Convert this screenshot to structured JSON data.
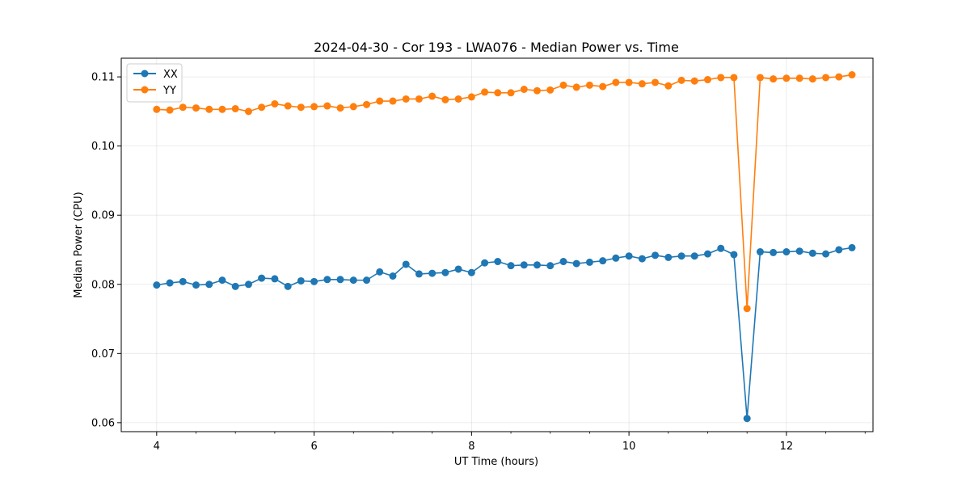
{
  "chart_data": {
    "type": "line",
    "title": "2024-04-30 - Cor 193 - LWA076 - Median Power vs. Time",
    "xlabel": "UT Time (hours)",
    "ylabel": "Median Power (CPU)",
    "xlim": [
      3.55,
      13.1
    ],
    "ylim": [
      0.0587,
      0.1127
    ],
    "xticks": [
      4,
      6,
      8,
      10,
      12
    ],
    "xtick_labels": [
      "4",
      "6",
      "8",
      "10",
      "12"
    ],
    "yticks": [
      0.06,
      0.07,
      0.08,
      0.09,
      0.1,
      0.11
    ],
    "ytick_labels": [
      "0.06",
      "0.07",
      "0.08",
      "0.09",
      "0.10",
      "0.11"
    ],
    "grid": true,
    "legend_position": "top-left",
    "x": [
      4.0,
      4.167,
      4.333,
      4.5,
      4.667,
      4.833,
      5.0,
      5.167,
      5.333,
      5.5,
      5.667,
      5.833,
      6.0,
      6.167,
      6.333,
      6.5,
      6.667,
      6.833,
      7.0,
      7.167,
      7.333,
      7.5,
      7.667,
      7.833,
      8.0,
      8.167,
      8.333,
      8.5,
      8.667,
      8.833,
      9.0,
      9.167,
      9.333,
      9.5,
      9.667,
      9.833,
      10.0,
      10.167,
      10.333,
      10.5,
      10.667,
      10.833,
      11.0,
      11.167,
      11.333,
      11.5,
      11.667,
      11.833,
      12.0,
      12.167,
      12.333,
      12.5,
      12.667,
      12.833
    ],
    "series": [
      {
        "name": "XX",
        "color": "#1f77b4",
        "values": [
          0.0799,
          0.0802,
          0.0804,
          0.0799,
          0.08,
          0.0806,
          0.0797,
          0.08,
          0.0809,
          0.0808,
          0.0797,
          0.0805,
          0.0804,
          0.0807,
          0.0807,
          0.0806,
          0.0806,
          0.0818,
          0.0812,
          0.0829,
          0.0815,
          0.0816,
          0.0817,
          0.0822,
          0.0817,
          0.0831,
          0.0833,
          0.0827,
          0.0828,
          0.0828,
          0.0827,
          0.0833,
          0.083,
          0.0832,
          0.0834,
          0.0838,
          0.0841,
          0.0837,
          0.0842,
          0.0839,
          0.0841,
          0.0841,
          0.0844,
          0.0852,
          0.0843,
          0.0606,
          0.0847,
          0.0846,
          0.0847,
          0.0848,
          0.0845,
          0.0844,
          0.085,
          0.0853
        ]
      },
      {
        "name": "YY",
        "color": "#ff7f0e",
        "values": [
          0.1053,
          0.1052,
          0.1056,
          0.1055,
          0.1053,
          0.1053,
          0.1054,
          0.105,
          0.1056,
          0.1061,
          0.1058,
          0.1056,
          0.1057,
          0.1058,
          0.1055,
          0.1057,
          0.106,
          0.1065,
          0.1065,
          0.1068,
          0.1068,
          0.1072,
          0.1067,
          0.1068,
          0.1071,
          0.1078,
          0.1077,
          0.1077,
          0.1082,
          0.108,
          0.1081,
          0.1088,
          0.1085,
          0.1088,
          0.1086,
          0.1092,
          0.1092,
          0.109,
          0.1092,
          0.1087,
          0.1095,
          0.1094,
          0.1096,
          0.1099,
          0.1099,
          0.0765,
          0.1099,
          0.1097,
          0.1098,
          0.1098,
          0.1097,
          0.1099,
          0.11,
          0.1103
        ]
      }
    ]
  }
}
